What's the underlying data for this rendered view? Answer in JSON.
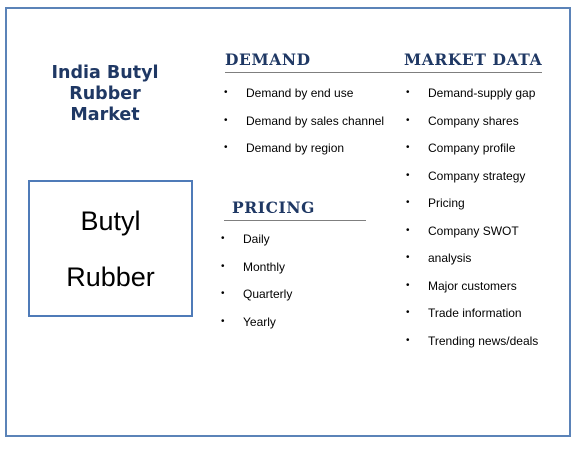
{
  "title": {
    "line1": "India Butyl",
    "line2": "Rubber",
    "line3": "Market"
  },
  "product": {
    "line1": "Butyl",
    "line2": "Rubber"
  },
  "demand": {
    "heading": "DEMAND",
    "items": [
      "Demand by end use",
      "Demand by sales channel",
      "Demand by region"
    ]
  },
  "pricing": {
    "heading": "PRICING",
    "items": [
      "Daily",
      "Monthly",
      "Quarterly",
      "Yearly"
    ]
  },
  "market_data": {
    "heading": "MARKET DATA",
    "items": [
      "Demand-supply gap",
      "Company shares",
      "Company profile",
      "Company strategy",
      "Pricing",
      "Company SWOT",
      "analysis",
      "Major customers",
      "Trade information",
      "Trending news/deals"
    ]
  },
  "colors": {
    "frame": "#5b83b8",
    "heading": "#1f3864"
  }
}
